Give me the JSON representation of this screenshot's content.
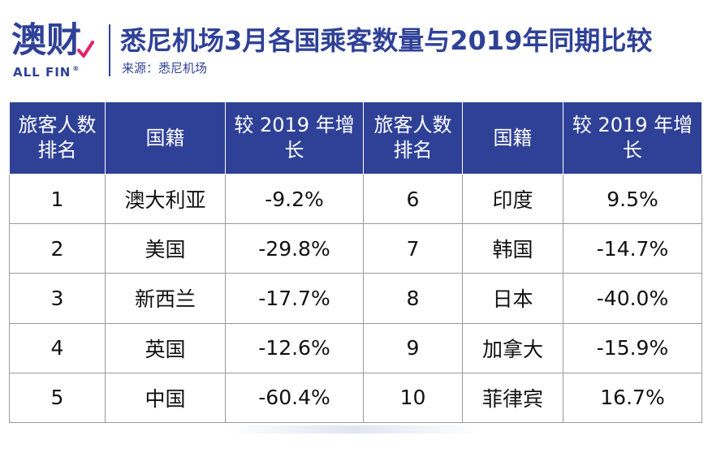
{
  "brand": {
    "logo_text": "澳财",
    "logo_sub": "ALL FIN",
    "logo_reg": "®",
    "color": "#2f4197",
    "accent": "#e0246a"
  },
  "title": "悉尼机场3月各国乘客数量与2019年同期比较",
  "source": "来源：悉尼机场",
  "table": {
    "headers": [
      "旅客人数排名",
      "国籍",
      "较 2019 年增长",
      "旅客人数排名",
      "国籍",
      "较 2019 年增长"
    ],
    "rows": [
      [
        "1",
        "澳大利亚",
        "-9.2%",
        "6",
        "印度",
        "9.5%"
      ],
      [
        "2",
        "美国",
        "-29.8%",
        "7",
        "韩国",
        "-14.7%"
      ],
      [
        "3",
        "新西兰",
        "-17.7%",
        "8",
        "日本",
        "-40.0%"
      ],
      [
        "4",
        "英国",
        "-12.6%",
        "9",
        "加拿大",
        "-15.9%"
      ],
      [
        "5",
        "中国",
        "-60.4%",
        "10",
        "菲律宾",
        "16.7%"
      ]
    ]
  }
}
